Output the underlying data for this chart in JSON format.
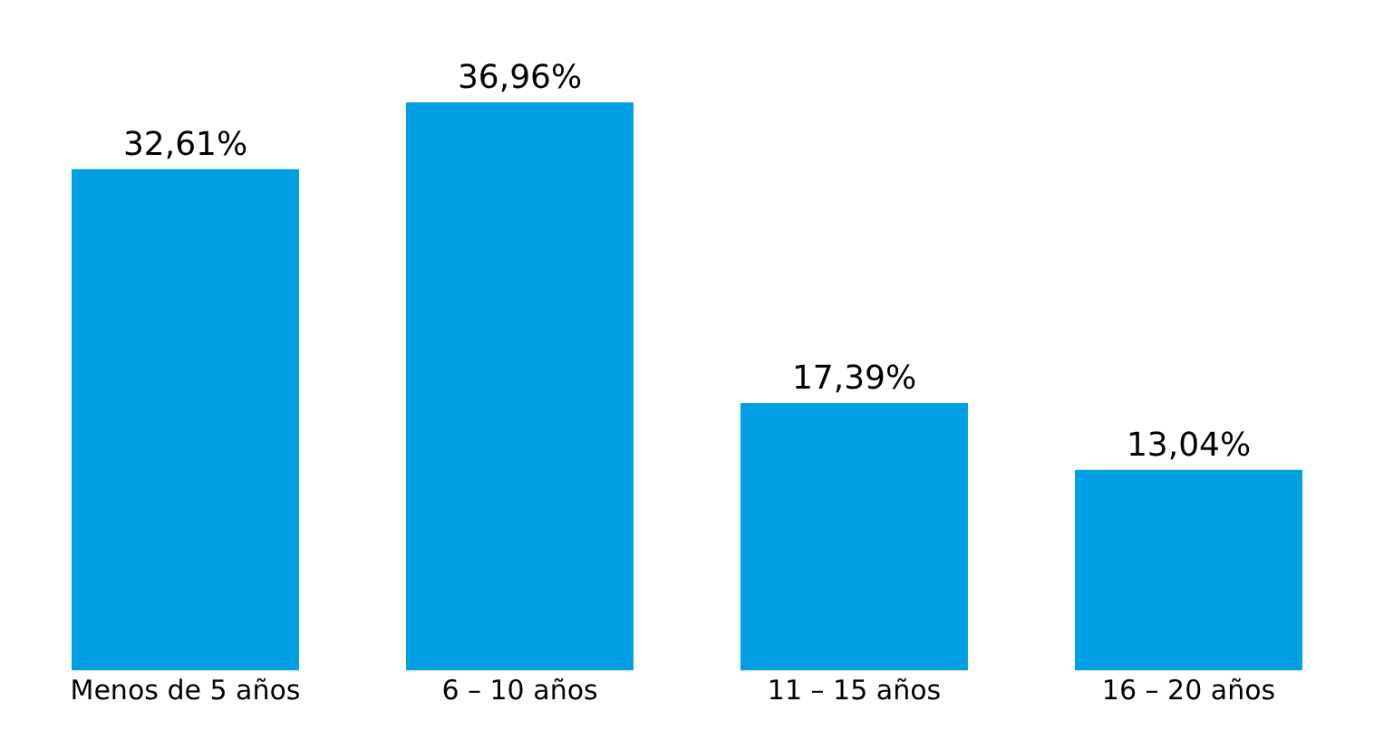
{
  "chart_data": {
    "type": "bar",
    "categories": [
      "Menos de 5 años",
      "6 – 10 años",
      "11 – 15 años",
      "16 – 20 años"
    ],
    "values": [
      32.61,
      36.96,
      17.39,
      13.04
    ],
    "value_labels": [
      "32,61%",
      "36,96%",
      "17,39%",
      "13,04%"
    ],
    "color": "#009fe3"
  }
}
